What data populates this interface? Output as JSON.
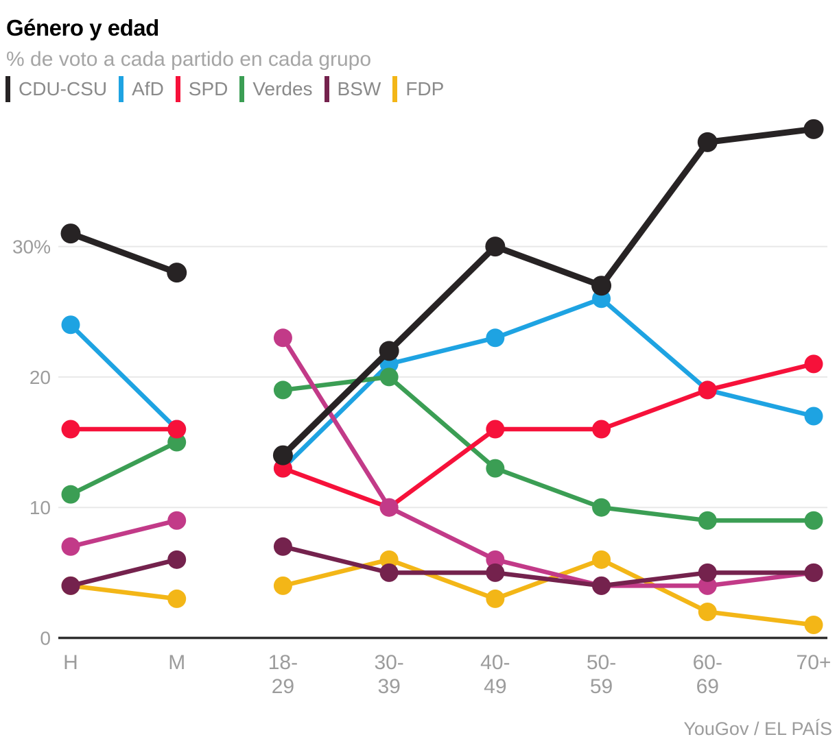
{
  "header": {
    "title": "Género y edad",
    "subtitle": "% de voto a cada partido en cada grupo"
  },
  "legend": [
    {
      "label": "CDU-CSU",
      "color": "#272324"
    },
    {
      "label": "AfD",
      "color": "#1ea3e2"
    },
    {
      "label": "SPD",
      "color": "#f6113a"
    },
    {
      "label": "Verdes",
      "color": "#3b9e54"
    },
    {
      "label": "BSW",
      "color": "#74224d"
    },
    {
      "label": "FDP",
      "color": "#f3b617"
    }
  ],
  "footer": {
    "credit": "YouGov / EL PAÍS"
  },
  "style_colors": {
    "grid": "#e8e8e8",
    "axis": "#2f2f2f",
    "tick_text": "#9c9c9c"
  },
  "chart_data": {
    "type": "line",
    "title": "Género y edad",
    "subtitle": "% de voto a cada partido en cada grupo",
    "source": "YouGov / EL PAÍS",
    "categories": [
      "H",
      "M",
      "18-29",
      "30-39",
      "40-49",
      "50-59",
      "60-69",
      "70+"
    ],
    "x_tick_labels": [
      [
        "H"
      ],
      [
        "M"
      ],
      [
        "18-",
        "29"
      ],
      [
        "30-",
        "39"
      ],
      [
        "40-",
        "49"
      ],
      [
        "50-",
        "59"
      ],
      [
        "60-",
        "69"
      ],
      [
        "70+"
      ]
    ],
    "segments": [
      [
        0,
        1
      ],
      [
        2,
        3,
        4,
        5,
        6,
        7
      ]
    ],
    "xlabel": "",
    "ylabel": "% de voto",
    "ylim": [
      0,
      41
    ],
    "yticks": [
      {
        "value": 30,
        "label": "30%"
      },
      {
        "value": 20,
        "label": "20"
      },
      {
        "value": 10,
        "label": "10"
      },
      {
        "value": 0,
        "label": "0"
      }
    ],
    "grid": true,
    "legend_position": "top",
    "series": [
      {
        "name": "FDP",
        "color": "#f3b617",
        "in_legend": true,
        "emphasis": false,
        "values": [
          4,
          3,
          4,
          6,
          3,
          6,
          2,
          1
        ]
      },
      {
        "name": "AfD",
        "color": "#1ea3e2",
        "in_legend": true,
        "emphasis": false,
        "values": [
          24,
          16,
          13,
          21,
          23,
          26,
          19,
          17
        ]
      },
      {
        "name": "Verdes",
        "color": "#3b9e54",
        "in_legend": true,
        "emphasis": false,
        "values": [
          11,
          15,
          19,
          20,
          13,
          10,
          9,
          9
        ]
      },
      {
        "name": "SPD",
        "color": "#f6113a",
        "in_legend": true,
        "emphasis": false,
        "values": [
          16,
          16,
          13,
          10,
          16,
          16,
          19,
          21
        ]
      },
      {
        "name": "unlabeled-magenta",
        "color": "#c23a88",
        "in_legend": false,
        "emphasis": false,
        "values": [
          7,
          9,
          23,
          10,
          6,
          4,
          4,
          5
        ]
      },
      {
        "name": "BSW",
        "color": "#74224d",
        "in_legend": true,
        "emphasis": false,
        "values": [
          4,
          6,
          7,
          5,
          5,
          4,
          5,
          5
        ]
      },
      {
        "name": "CDU-CSU",
        "color": "#272324",
        "in_legend": true,
        "emphasis": true,
        "values": [
          31,
          28,
          14,
          22,
          30,
          27,
          38,
          39
        ]
      }
    ]
  }
}
